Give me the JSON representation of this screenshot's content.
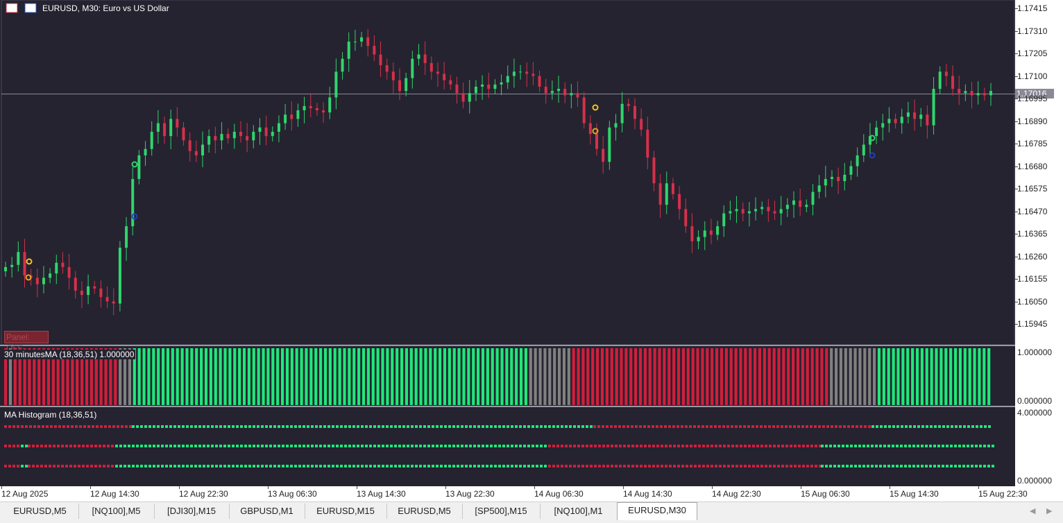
{
  "window": {
    "title": "EURUSD, M30:  Euro vs US Dollar"
  },
  "icons": [
    "chart-window-icon",
    "save-icon"
  ],
  "chart_data": {
    "type": "candlestick",
    "symbol": "EURUSD",
    "timeframe": "M30",
    "ylim": [
      1.1589,
      1.1747
    ],
    "current_price": "1.17016",
    "y_ticks": [
      "1.17415",
      "1.17310",
      "1.17205",
      "1.17100",
      "1.16995",
      "1.16890",
      "1.16785",
      "1.16680",
      "1.16575",
      "1.16470",
      "1.16365",
      "1.16260",
      "1.16155",
      "1.16050",
      "1.15945"
    ],
    "x_ticks": [
      "12 Aug 2025",
      "12 Aug 14:30",
      "12 Aug 22:30",
      "13 Aug 06:30",
      "13 Aug 14:30",
      "13 Aug 22:30",
      "14 Aug 06:30",
      "14 Aug 14:30",
      "14 Aug 22:30",
      "15 Aug 06:30",
      "15 Aug 14:30",
      "15 Aug 22:30"
    ],
    "closes": [
      1.1621,
      1.1622,
      1.1628,
      1.1617,
      1.1616,
      1.1613,
      1.1616,
      1.1618,
      1.1623,
      1.1621,
      1.1616,
      1.161,
      1.1608,
      1.1612,
      1.1611,
      1.1607,
      1.1605,
      1.1604,
      1.163,
      1.164,
      1.1662,
      1.1673,
      1.1676,
      1.1684,
      1.1688,
      1.1682,
      1.169,
      1.1686,
      1.168,
      1.1675,
      1.1673,
      1.1678,
      1.1682,
      1.168,
      1.1683,
      1.1681,
      1.1684,
      1.1682,
      1.168,
      1.1684,
      1.1686,
      1.1682,
      1.1684,
      1.1688,
      1.1692,
      1.169,
      1.1694,
      1.1696,
      1.1695,
      1.1694,
      1.1693,
      1.17,
      1.1712,
      1.1718,
      1.1726,
      1.1726,
      1.1728,
      1.1724,
      1.172,
      1.1715,
      1.1712,
      1.1708,
      1.1703,
      1.1709,
      1.1718,
      1.172,
      1.1716,
      1.1712,
      1.1711,
      1.1708,
      1.1706,
      1.1702,
      1.1698,
      1.1702,
      1.1705,
      1.1706,
      1.1704,
      1.1706,
      1.1707,
      1.171,
      1.1712,
      1.1712,
      1.1711,
      1.171,
      1.1705,
      1.1702,
      1.1703,
      1.1704,
      1.1701,
      1.1702,
      1.17,
      1.1688,
      1.1683,
      1.1676,
      1.167,
      1.1686,
      1.1688,
      1.1697,
      1.1696,
      1.169,
      1.1685,
      1.1672,
      1.166,
      1.165,
      1.166,
      1.1655,
      1.1648,
      1.164,
      1.1633,
      1.1635,
      1.1638,
      1.1636,
      1.164,
      1.1646,
      1.1647,
      1.1648,
      1.1646,
      1.1647,
      1.1648,
      1.1649,
      1.1647,
      1.1646,
      1.1648,
      1.165,
      1.1652,
      1.1649,
      1.165,
      1.1656,
      1.1659,
      1.1662,
      1.1663,
      1.1661,
      1.1664,
      1.1668,
      1.1673,
      1.1678,
      1.1682,
      1.1686,
      1.1688,
      1.169,
      1.1688,
      1.1691,
      1.1693,
      1.169,
      1.1692,
      1.1687,
      1.1704,
      1.1712,
      1.171,
      1.1704,
      1.1702,
      1.1703,
      1.1701,
      1.1702,
      1.1701,
      1.1703
    ]
  },
  "price_label": "1.17016",
  "panel_button": "Panel: OFF",
  "indicator1": {
    "title": "30 minutesMA  (18,36,51) 1.000000",
    "y_max": "1.000000",
    "y_min": "0.000000",
    "colors": {
      "up": "#1ee87a",
      "down": "#d21e3c",
      "flat": "#808080"
    },
    "bars": [
      "down",
      "flat",
      "down",
      "down",
      "down",
      "down",
      "down",
      "down",
      "down",
      "down",
      "down",
      "down",
      "down",
      "down",
      "down",
      "down",
      "down",
      "down",
      "down",
      "down",
      "down",
      "down",
      "down",
      "down",
      "flat",
      "flat",
      "flat",
      "up",
      "up",
      "up",
      "up",
      "up",
      "up",
      "up",
      "up",
      "up",
      "up",
      "up",
      "up",
      "up",
      "up",
      "up",
      "up",
      "up",
      "up",
      "up",
      "up",
      "up",
      "up",
      "up",
      "up",
      "up",
      "up",
      "up",
      "up",
      "up",
      "up",
      "up",
      "up",
      "up",
      "up",
      "up",
      "up",
      "up",
      "up",
      "up",
      "up",
      "up",
      "up",
      "up",
      "up",
      "up",
      "up",
      "up",
      "up",
      "up",
      "up",
      "up",
      "up",
      "up",
      "up",
      "up",
      "up",
      "up",
      "up",
      "up",
      "up",
      "up",
      "up",
      "up",
      "up",
      "up",
      "up",
      "up",
      "up",
      "up",
      "up",
      "up",
      "up",
      "up",
      "up",
      "up",
      "up",
      "up",
      "up",
      "up",
      "up",
      "up",
      "up",
      "up",
      "flat",
      "flat",
      "flat",
      "flat",
      "flat",
      "flat",
      "flat",
      "flat",
      "flat",
      "down",
      "down",
      "down",
      "down",
      "down",
      "down",
      "down",
      "down",
      "down",
      "down",
      "down",
      "down",
      "down",
      "down",
      "down",
      "down",
      "down",
      "down",
      "down",
      "down",
      "down",
      "down",
      "down",
      "down",
      "down",
      "down",
      "down",
      "down",
      "down",
      "down",
      "down",
      "down",
      "down",
      "down",
      "down",
      "down",
      "down",
      "down",
      "down",
      "down",
      "down",
      "down",
      "down",
      "down",
      "down",
      "down",
      "down",
      "down",
      "down",
      "down",
      "down",
      "down",
      "down",
      "down",
      "flat",
      "flat",
      "flat",
      "flat",
      "flat",
      "flat",
      "flat",
      "flat",
      "flat",
      "flat",
      "up",
      "up",
      "up",
      "up",
      "up",
      "up",
      "up",
      "up",
      "up",
      "up",
      "up",
      "up",
      "up",
      "up",
      "up",
      "up",
      "up",
      "up",
      "up",
      "up",
      "up",
      "up",
      "up",
      "up"
    ]
  },
  "indicator2": {
    "title": "MA Histogram (18,36,51)",
    "y_max": "4.000000",
    "y_min": "0.000000",
    "rows": [
      {
        "segments": [
          {
            "to": 190,
            "c": "down"
          },
          {
            "to": 855,
            "c": "up"
          },
          {
            "to": 1256,
            "c": "down"
          },
          {
            "to": 1430,
            "c": "up"
          }
        ]
      },
      {
        "segments": [
          {
            "to": 30,
            "c": "down"
          },
          {
            "to": 40,
            "c": "up"
          },
          {
            "to": 166,
            "c": "down"
          },
          {
            "to": 790,
            "c": "up"
          },
          {
            "to": 1183,
            "c": "down"
          },
          {
            "to": 1430,
            "c": "up"
          }
        ]
      },
      {
        "segments": [
          {
            "to": 30,
            "c": "down"
          },
          {
            "to": 40,
            "c": "up"
          },
          {
            "to": 166,
            "c": "down"
          },
          {
            "to": 790,
            "c": "up"
          },
          {
            "to": 1183,
            "c": "down"
          },
          {
            "to": 1430,
            "c": "up"
          }
        ]
      }
    ]
  },
  "tabs": [
    {
      "label": "EURUSD,M5"
    },
    {
      "label": "[NQ100],M5"
    },
    {
      "label": "[DJI30],M15"
    },
    {
      "label": "GBPUSD,M1"
    },
    {
      "label": "EURUSD,M15"
    },
    {
      "label": "EURUSD,M5"
    },
    {
      "label": "[SP500],M15"
    },
    {
      "label": "[NQ100],M1"
    },
    {
      "label": "EURUSD,M30"
    }
  ],
  "active_tab": "EURUSD,M30",
  "nav": {
    "left": "◀",
    "right": "▶"
  }
}
